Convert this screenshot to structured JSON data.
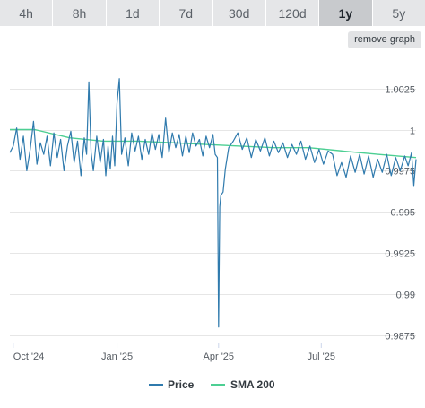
{
  "tabs": [
    {
      "label": "4h"
    },
    {
      "label": "8h"
    },
    {
      "label": "1d"
    },
    {
      "label": "7d"
    },
    {
      "label": "30d"
    },
    {
      "label": "120d"
    },
    {
      "label": "1y",
      "active": true
    },
    {
      "label": "5y"
    }
  ],
  "remove_label": "remove graph",
  "colors": {
    "price": "#2f7aad",
    "sma": "#4dcf93",
    "grid": "#e6e6e6"
  },
  "chart_data": {
    "type": "line",
    "x_range": [
      "2024-09-28",
      "2025-09-23"
    ],
    "ylim": [
      0.987,
      1.0045
    ],
    "y_ticks": [
      {
        "label": "1.0025",
        "value": 1.0025
      },
      {
        "label": "1",
        "value": 1.0
      },
      {
        "label": "0.9975",
        "value": 0.9975
      },
      {
        "label": "0.995",
        "value": 0.995
      },
      {
        "label": "0.9925",
        "value": 0.9925
      },
      {
        "label": "0.99",
        "value": 0.99
      },
      {
        "label": "0.9875",
        "value": 0.9875
      }
    ],
    "x_ticks": [
      {
        "label": "Oct '24",
        "date": "2024-10-01"
      },
      {
        "label": "Jan '25",
        "date": "2025-01-01"
      },
      {
        "label": "Apr '25",
        "date": "2025-04-01"
      },
      {
        "label": "Jul '25",
        "date": "2025-07-01"
      }
    ],
    "legend": "bottom-center",
    "grid": true,
    "series": [
      {
        "name": "Price",
        "points": [
          [
            "2024-09-28",
            0.9986
          ],
          [
            "2024-10-01",
            0.999
          ],
          [
            "2024-10-04",
            1.0001
          ],
          [
            "2024-10-07",
            0.9982
          ],
          [
            "2024-10-10",
            0.9996
          ],
          [
            "2024-10-13",
            0.9975
          ],
          [
            "2024-10-16",
            0.9988
          ],
          [
            "2024-10-19",
            1.0005
          ],
          [
            "2024-10-22",
            0.9979
          ],
          [
            "2024-10-25",
            0.9992
          ],
          [
            "2024-10-28",
            0.9985
          ],
          [
            "2024-10-31",
            0.9996
          ],
          [
            "2024-11-03",
            0.9978
          ],
          [
            "2024-11-06",
            0.9998
          ],
          [
            "2024-11-09",
            0.9983
          ],
          [
            "2024-11-12",
            0.9994
          ],
          [
            "2024-11-15",
            0.9975
          ],
          [
            "2024-11-18",
            0.999
          ],
          [
            "2024-11-21",
            0.9999
          ],
          [
            "2024-11-24",
            0.998
          ],
          [
            "2024-11-27",
            0.9993
          ],
          [
            "2024-11-30",
            0.9972
          ],
          [
            "2024-12-03",
            0.9995
          ],
          [
            "2024-12-05",
            0.9985
          ],
          [
            "2024-12-07",
            1.0029
          ],
          [
            "2024-12-09",
            0.9986
          ],
          [
            "2024-12-11",
            0.9975
          ],
          [
            "2024-12-14",
            0.9996
          ],
          [
            "2024-12-17",
            0.998
          ],
          [
            "2024-12-20",
            0.9994
          ],
          [
            "2024-12-22",
            0.9972
          ],
          [
            "2024-12-24",
            0.999
          ],
          [
            "2024-12-26",
            0.9976
          ],
          [
            "2024-12-28",
            0.9996
          ],
          [
            "2024-12-30",
            0.9978
          ],
          [
            "2025-01-01",
            1.0016
          ],
          [
            "2025-01-03",
            1.0031
          ],
          [
            "2025-01-05",
            0.9985
          ],
          [
            "2025-01-08",
            0.9995
          ],
          [
            "2025-01-11",
            0.9978
          ],
          [
            "2025-01-14",
            0.9998
          ],
          [
            "2025-01-17",
            0.9987
          ],
          [
            "2025-01-20",
            0.9996
          ],
          [
            "2025-01-23",
            0.9982
          ],
          [
            "2025-01-26",
            0.9994
          ],
          [
            "2025-01-29",
            0.9985
          ],
          [
            "2025-02-01",
            0.9998
          ],
          [
            "2025-02-04",
            0.9988
          ],
          [
            "2025-02-07",
            0.9997
          ],
          [
            "2025-02-10",
            0.9983
          ],
          [
            "2025-02-13",
            1.0007
          ],
          [
            "2025-02-16",
            0.9986
          ],
          [
            "2025-02-19",
            0.9998
          ],
          [
            "2025-02-22",
            0.9989
          ],
          [
            "2025-02-25",
            0.9997
          ],
          [
            "2025-02-28",
            0.9984
          ],
          [
            "2025-03-03",
            0.9996
          ],
          [
            "2025-03-06",
            0.9986
          ],
          [
            "2025-03-09",
            0.9998
          ],
          [
            "2025-03-12",
            0.999
          ],
          [
            "2025-03-15",
            0.9994
          ],
          [
            "2025-03-18",
            0.9984
          ],
          [
            "2025-03-21",
            0.9996
          ],
          [
            "2025-03-24",
            0.9989
          ],
          [
            "2025-03-27",
            0.9997
          ],
          [
            "2025-03-29",
            0.9985
          ],
          [
            "2025-03-31",
            0.9983
          ],
          [
            "2025-04-01",
            0.988
          ],
          [
            "2025-04-02",
            0.9953
          ],
          [
            "2025-04-03",
            0.996
          ],
          [
            "2025-04-05",
            0.9962
          ],
          [
            "2025-04-07",
            0.9976
          ],
          [
            "2025-04-10",
            0.9989
          ],
          [
            "2025-04-14",
            0.9993
          ],
          [
            "2025-04-18",
            0.9998
          ],
          [
            "2025-04-22",
            0.9988
          ],
          [
            "2025-04-26",
            0.9995
          ],
          [
            "2025-04-30",
            0.9983
          ],
          [
            "2025-05-04",
            0.9994
          ],
          [
            "2025-05-08",
            0.9987
          ],
          [
            "2025-05-12",
            0.9995
          ],
          [
            "2025-05-16",
            0.9984
          ],
          [
            "2025-05-20",
            0.9993
          ],
          [
            "2025-05-24",
            0.9986
          ],
          [
            "2025-05-28",
            0.9992
          ],
          [
            "2025-06-01",
            0.9983
          ],
          [
            "2025-06-05",
            0.9991
          ],
          [
            "2025-06-09",
            0.9985
          ],
          [
            "2025-06-13",
            0.9993
          ],
          [
            "2025-06-17",
            0.9982
          ],
          [
            "2025-06-21",
            0.999
          ],
          [
            "2025-06-25",
            0.998
          ],
          [
            "2025-06-29",
            0.9988
          ],
          [
            "2025-07-03",
            0.9979
          ],
          [
            "2025-07-07",
            0.9987
          ],
          [
            "2025-07-11",
            0.9985
          ],
          [
            "2025-07-15",
            0.9972
          ],
          [
            "2025-07-19",
            0.998
          ],
          [
            "2025-07-23",
            0.9971
          ],
          [
            "2025-07-27",
            0.9984
          ],
          [
            "2025-07-31",
            0.9974
          ],
          [
            "2025-08-04",
            0.9985
          ],
          [
            "2025-08-08",
            0.9973
          ],
          [
            "2025-08-12",
            0.9984
          ],
          [
            "2025-08-16",
            0.9971
          ],
          [
            "2025-08-20",
            0.9982
          ],
          [
            "2025-08-24",
            0.9974
          ],
          [
            "2025-08-28",
            0.9985
          ],
          [
            "2025-09-01",
            0.9972
          ],
          [
            "2025-09-05",
            0.9983
          ],
          [
            "2025-09-09",
            0.9975
          ],
          [
            "2025-09-13",
            0.9984
          ],
          [
            "2025-09-16",
            0.9978
          ],
          [
            "2025-09-19",
            0.9986
          ],
          [
            "2025-09-21",
            0.9966
          ],
          [
            "2025-09-23",
            0.9982
          ]
        ]
      },
      {
        "name": "SMA 200",
        "points": [
          [
            "2024-09-28",
            1.0
          ],
          [
            "2024-10-20",
            1.0
          ],
          [
            "2024-11-20",
            0.9995
          ],
          [
            "2024-12-20",
            0.9993
          ],
          [
            "2025-01-20",
            0.9993
          ],
          [
            "2025-02-20",
            0.9992
          ],
          [
            "2025-03-20",
            0.9991
          ],
          [
            "2025-04-20",
            0.999
          ],
          [
            "2025-05-20",
            0.9989
          ],
          [
            "2025-06-20",
            0.9989
          ],
          [
            "2025-07-20",
            0.9987
          ],
          [
            "2025-08-20",
            0.9985
          ],
          [
            "2025-09-23",
            0.9983
          ]
        ]
      }
    ]
  }
}
